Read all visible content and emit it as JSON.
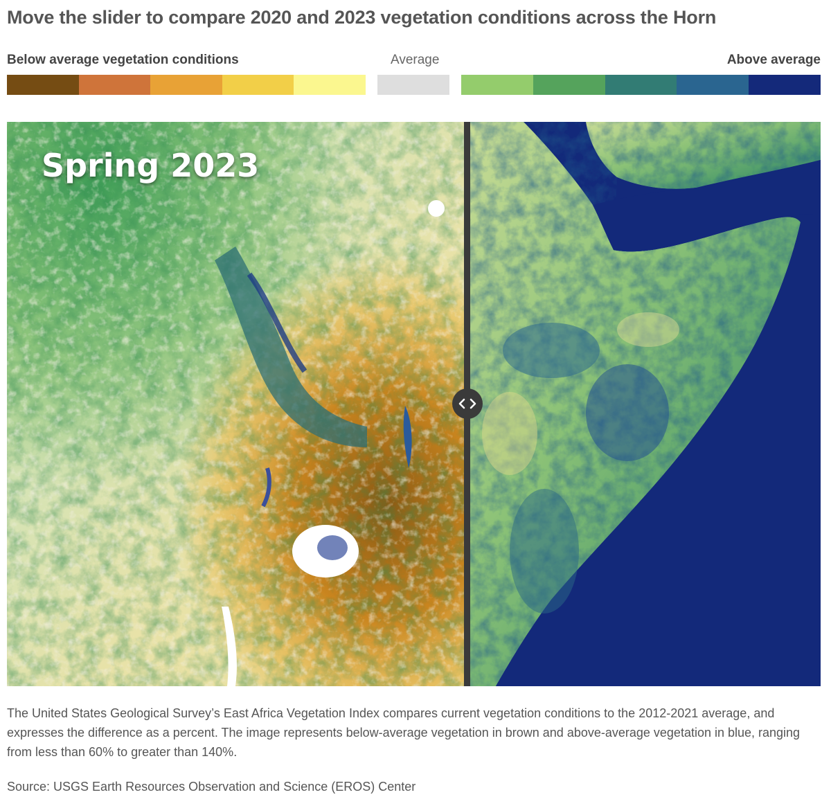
{
  "title": "Move the slider to compare 2020 and 2023 vegetation conditions across the Horn",
  "legend": {
    "below_label": "Below average vegetation conditions",
    "average_label": "Average",
    "above_label": "Above average",
    "below_colors": [
      "#754c13",
      "#cf743a",
      "#e8a236",
      "#f2cf48",
      "#fbf78f"
    ],
    "average_color": "#dedede",
    "above_colors": [
      "#94cc6c",
      "#55a35c",
      "#327c74",
      "#2a6590",
      "#14297a"
    ]
  },
  "map": {
    "label": "Spring 2023",
    "slider_icon": "left-right-arrows-icon",
    "slider_position_percent": 56.5
  },
  "caption": "The United States Geological Survey’s East Africa Vegetation Index compares current vegetation conditions to the 2012-2021 average, and expresses the difference as a percent. The image represents below-average vegetation in brown and above-average vegetation in blue, ranging from less than 60% to greater than 140%.",
  "source": "Source: USGS Earth Resources Observation and Science (EROS) Center"
}
